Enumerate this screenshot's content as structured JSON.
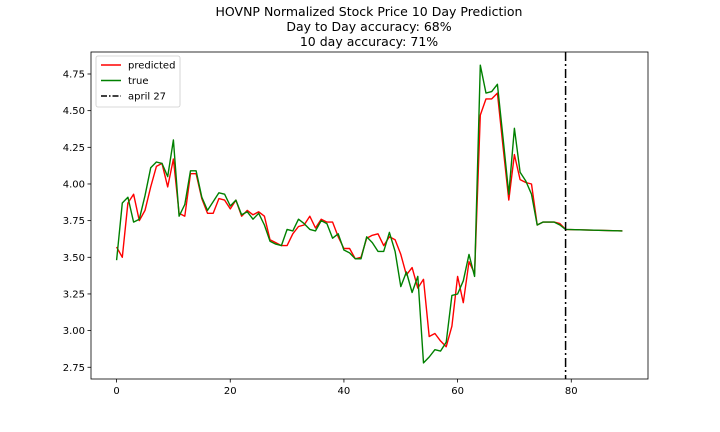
{
  "chart_data": {
    "type": "line",
    "title_lines": [
      "HOVNP Normalized Stock Price 10 Day Prediction",
      "Day to Day accuracy: 68%",
      "10 day accuracy: 71%"
    ],
    "xlabel": "",
    "ylabel": "",
    "xlim": [
      -4.5,
      93.5
    ],
    "ylim": [
      2.67,
      4.9
    ],
    "x_ticks": [
      0,
      20,
      40,
      60,
      80
    ],
    "y_ticks": [
      2.75,
      3.0,
      3.25,
      3.5,
      3.75,
      4.0,
      4.25,
      4.5,
      4.75
    ],
    "y_tick_labels": [
      "2.75",
      "3.00",
      "3.25",
      "3.50",
      "3.75",
      "4.00",
      "4.25",
      "4.50",
      "4.75"
    ],
    "grid": false,
    "legend_position": "top-left",
    "colors": {
      "predicted": "#ff0000",
      "true": "#008000",
      "marker": "#000000"
    },
    "series": [
      {
        "name": "predicted",
        "x": [
          0,
          1,
          2,
          3,
          4,
          5,
          6,
          7,
          8,
          9,
          10,
          11,
          12,
          13,
          14,
          15,
          16,
          17,
          18,
          19,
          20,
          21,
          22,
          23,
          24,
          25,
          26,
          27,
          28,
          29,
          30,
          31,
          32,
          33,
          34,
          35,
          36,
          37,
          38,
          39,
          40,
          41,
          42,
          43,
          44,
          45,
          46,
          47,
          48,
          49,
          50,
          51,
          52,
          53,
          54,
          55,
          56,
          57,
          58,
          59,
          60,
          61,
          62,
          63,
          64,
          65,
          66,
          67,
          68,
          69,
          70,
          71,
          72,
          73,
          74,
          75,
          76,
          77,
          78,
          79,
          89
        ],
        "values": [
          3.57,
          3.5,
          3.87,
          3.93,
          3.75,
          3.82,
          3.98,
          4.12,
          4.14,
          3.98,
          4.17,
          3.8,
          3.78,
          4.07,
          4.07,
          3.9,
          3.8,
          3.8,
          3.9,
          3.89,
          3.83,
          3.89,
          3.78,
          3.82,
          3.79,
          3.81,
          3.78,
          3.62,
          3.6,
          3.58,
          3.58,
          3.66,
          3.71,
          3.72,
          3.78,
          3.7,
          3.76,
          3.74,
          3.74,
          3.64,
          3.56,
          3.56,
          3.49,
          3.5,
          3.63,
          3.65,
          3.66,
          3.58,
          3.64,
          3.62,
          3.52,
          3.38,
          3.43,
          3.29,
          3.35,
          2.96,
          2.98,
          2.93,
          2.89,
          3.03,
          3.37,
          3.19,
          3.47,
          3.39,
          4.47,
          4.58,
          4.58,
          4.62,
          4.25,
          3.89,
          4.2,
          4.03,
          4.01,
          4.0,
          3.72,
          3.74,
          3.74,
          3.74,
          3.73,
          3.69,
          3.68
        ]
      },
      {
        "name": "true",
        "x": [
          0,
          1,
          2,
          3,
          4,
          5,
          6,
          7,
          8,
          9,
          10,
          11,
          12,
          13,
          14,
          15,
          16,
          17,
          18,
          19,
          20,
          21,
          22,
          23,
          24,
          25,
          26,
          27,
          28,
          29,
          30,
          31,
          32,
          33,
          34,
          35,
          36,
          37,
          38,
          39,
          40,
          41,
          42,
          43,
          44,
          45,
          46,
          47,
          48,
          49,
          50,
          51,
          52,
          53,
          54,
          55,
          56,
          57,
          58,
          59,
          60,
          61,
          62,
          63,
          64,
          65,
          66,
          67,
          68,
          69,
          70,
          71,
          72,
          73,
          74,
          75,
          76,
          77,
          78,
          79,
          89
        ],
        "values": [
          3.48,
          3.87,
          3.91,
          3.74,
          3.76,
          3.92,
          4.11,
          4.15,
          4.14,
          4.05,
          4.3,
          3.78,
          3.86,
          4.09,
          4.09,
          3.91,
          3.82,
          3.88,
          3.94,
          3.93,
          3.85,
          3.89,
          3.79,
          3.81,
          3.76,
          3.8,
          3.72,
          3.61,
          3.59,
          3.58,
          3.69,
          3.68,
          3.76,
          3.73,
          3.69,
          3.68,
          3.75,
          3.73,
          3.63,
          3.66,
          3.55,
          3.53,
          3.49,
          3.49,
          3.64,
          3.6,
          3.54,
          3.54,
          3.67,
          3.54,
          3.3,
          3.4,
          3.26,
          3.37,
          2.78,
          2.82,
          2.87,
          2.86,
          2.92,
          3.24,
          3.25,
          3.34,
          3.52,
          3.37,
          4.81,
          4.62,
          4.63,
          4.68,
          4.31,
          3.93,
          4.38,
          4.08,
          4.02,
          3.93,
          3.72,
          3.74,
          3.74,
          3.74,
          3.72,
          3.69,
          3.68
        ]
      }
    ],
    "vline": {
      "x": 79,
      "label": "april 27",
      "style": "dash-dot"
    }
  }
}
